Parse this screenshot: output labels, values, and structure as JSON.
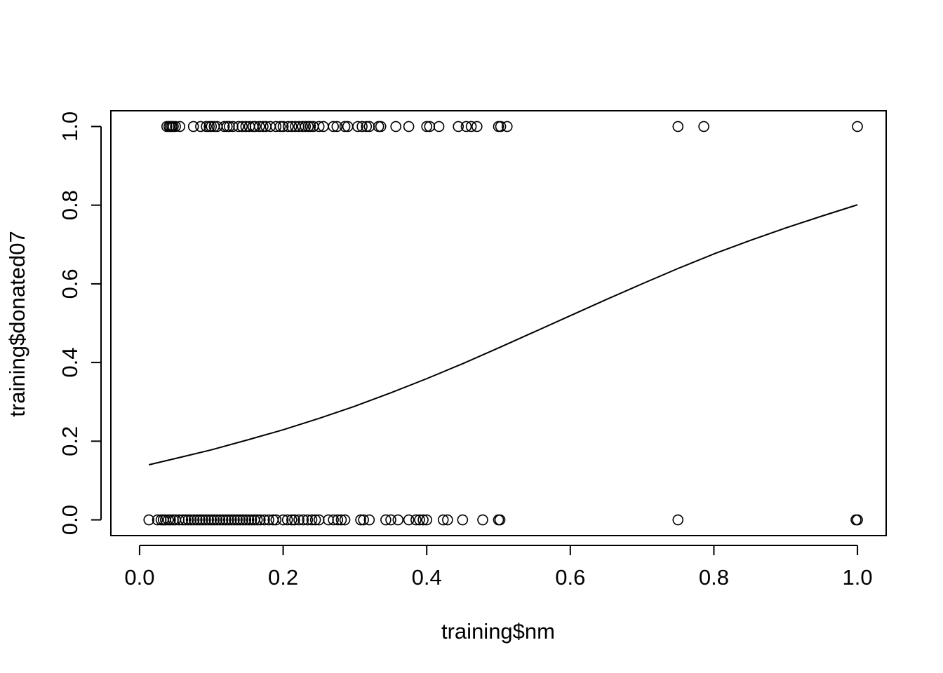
{
  "chart_data": {
    "type": "scatter",
    "title": "",
    "xlabel": "training$nm",
    "ylabel": "training$donated07",
    "xlim": [
      -0.04,
      1.04
    ],
    "ylim": [
      -0.04,
      1.04
    ],
    "x_ticks": [
      0.0,
      0.2,
      0.4,
      0.6,
      0.8,
      1.0
    ],
    "x_tick_labels": [
      "0.0",
      "0.2",
      "0.4",
      "0.6",
      "0.8",
      "1.0"
    ],
    "y_ticks": [
      0.0,
      0.2,
      0.4,
      0.6,
      0.8,
      1.0
    ],
    "y_tick_labels": [
      "0.0",
      "0.2",
      "0.4",
      "0.6",
      "0.8",
      "1.0"
    ],
    "grid": false,
    "legend": "none",
    "series": [
      {
        "kind": "points",
        "marker": "open-circle",
        "color": "#000000",
        "points": [
          [
            0.038,
            1
          ],
          [
            0.041,
            1
          ],
          [
            0.043,
            1
          ],
          [
            0.045,
            1
          ],
          [
            0.047,
            1
          ],
          [
            0.05,
            1
          ],
          [
            0.056,
            1
          ],
          [
            0.075,
            1
          ],
          [
            0.085,
            1
          ],
          [
            0.093,
            1
          ],
          [
            0.097,
            1
          ],
          [
            0.1,
            1
          ],
          [
            0.104,
            1
          ],
          [
            0.108,
            1
          ],
          [
            0.118,
            1
          ],
          [
            0.122,
            1
          ],
          [
            0.125,
            1
          ],
          [
            0.13,
            1
          ],
          [
            0.138,
            1
          ],
          [
            0.143,
            1
          ],
          [
            0.148,
            1
          ],
          [
            0.153,
            1
          ],
          [
            0.158,
            1
          ],
          [
            0.161,
            1
          ],
          [
            0.167,
            1
          ],
          [
            0.172,
            1
          ],
          [
            0.176,
            1
          ],
          [
            0.182,
            1
          ],
          [
            0.19,
            1
          ],
          [
            0.196,
            1
          ],
          [
            0.2,
            1
          ],
          [
            0.207,
            1
          ],
          [
            0.212,
            1
          ],
          [
            0.217,
            1
          ],
          [
            0.222,
            1
          ],
          [
            0.227,
            1
          ],
          [
            0.231,
            1
          ],
          [
            0.235,
            1
          ],
          [
            0.238,
            1
          ],
          [
            0.242,
            1
          ],
          [
            0.25,
            1
          ],
          [
            0.256,
            1
          ],
          [
            0.27,
            1
          ],
          [
            0.275,
            1
          ],
          [
            0.286,
            1
          ],
          [
            0.29,
            1
          ],
          [
            0.304,
            1
          ],
          [
            0.31,
            1
          ],
          [
            0.316,
            1
          ],
          [
            0.32,
            1
          ],
          [
            0.333,
            1
          ],
          [
            0.336,
            1
          ],
          [
            0.357,
            1
          ],
          [
            0.375,
            1
          ],
          [
            0.4,
            1
          ],
          [
            0.404,
            1
          ],
          [
            0.417,
            1
          ],
          [
            0.444,
            1
          ],
          [
            0.455,
            1
          ],
          [
            0.462,
            1
          ],
          [
            0.47,
            1
          ],
          [
            0.5,
            1
          ],
          [
            0.503,
            1
          ],
          [
            0.512,
            1
          ],
          [
            0.75,
            1
          ],
          [
            0.786,
            1
          ],
          [
            1.0,
            1
          ],
          [
            0.013,
            0
          ],
          [
            0.025,
            0
          ],
          [
            0.03,
            0
          ],
          [
            0.033,
            0
          ],
          [
            0.036,
            0
          ],
          [
            0.04,
            0
          ],
          [
            0.043,
            0
          ],
          [
            0.047,
            0
          ],
          [
            0.05,
            0
          ],
          [
            0.055,
            0
          ],
          [
            0.06,
            0
          ],
          [
            0.064,
            0
          ],
          [
            0.068,
            0
          ],
          [
            0.072,
            0
          ],
          [
            0.076,
            0
          ],
          [
            0.08,
            0
          ],
          [
            0.084,
            0
          ],
          [
            0.088,
            0
          ],
          [
            0.092,
            0
          ],
          [
            0.096,
            0
          ],
          [
            0.1,
            0
          ],
          [
            0.104,
            0
          ],
          [
            0.108,
            0
          ],
          [
            0.112,
            0
          ],
          [
            0.116,
            0
          ],
          [
            0.12,
            0
          ],
          [
            0.124,
            0
          ],
          [
            0.128,
            0
          ],
          [
            0.132,
            0
          ],
          [
            0.136,
            0
          ],
          [
            0.14,
            0
          ],
          [
            0.144,
            0
          ],
          [
            0.148,
            0
          ],
          [
            0.152,
            0
          ],
          [
            0.156,
            0
          ],
          [
            0.16,
            0
          ],
          [
            0.164,
            0
          ],
          [
            0.168,
            0
          ],
          [
            0.174,
            0
          ],
          [
            0.18,
            0
          ],
          [
            0.186,
            0
          ],
          [
            0.19,
            0
          ],
          [
            0.2,
            0
          ],
          [
            0.206,
            0
          ],
          [
            0.212,
            0
          ],
          [
            0.216,
            0
          ],
          [
            0.222,
            0
          ],
          [
            0.228,
            0
          ],
          [
            0.234,
            0
          ],
          [
            0.24,
            0
          ],
          [
            0.245,
            0
          ],
          [
            0.25,
            0
          ],
          [
            0.263,
            0
          ],
          [
            0.27,
            0
          ],
          [
            0.276,
            0
          ],
          [
            0.281,
            0
          ],
          [
            0.286,
            0
          ],
          [
            0.308,
            0
          ],
          [
            0.312,
            0
          ],
          [
            0.32,
            0
          ],
          [
            0.343,
            0
          ],
          [
            0.35,
            0
          ],
          [
            0.36,
            0
          ],
          [
            0.375,
            0
          ],
          [
            0.385,
            0
          ],
          [
            0.39,
            0
          ],
          [
            0.395,
            0
          ],
          [
            0.4,
            0
          ],
          [
            0.423,
            0
          ],
          [
            0.429,
            0
          ],
          [
            0.45,
            0
          ],
          [
            0.478,
            0
          ],
          [
            0.5,
            0
          ],
          [
            0.502,
            0
          ],
          [
            0.75,
            0
          ],
          [
            1.0,
            0
          ],
          [
            0.998,
            0
          ]
        ]
      },
      {
        "kind": "line",
        "color": "#000000",
        "x": [
          0.013,
          0.05,
          0.1,
          0.15,
          0.2,
          0.25,
          0.3,
          0.35,
          0.4,
          0.45,
          0.5,
          0.55,
          0.6,
          0.65,
          0.7,
          0.75,
          0.8,
          0.85,
          0.9,
          0.95,
          1.0
        ],
        "y": [
          0.14,
          0.156,
          0.178,
          0.203,
          0.229,
          0.258,
          0.289,
          0.323,
          0.359,
          0.397,
          0.437,
          0.478,
          0.519,
          0.56,
          0.6,
          0.639,
          0.676,
          0.71,
          0.742,
          0.772,
          0.801
        ]
      }
    ]
  }
}
